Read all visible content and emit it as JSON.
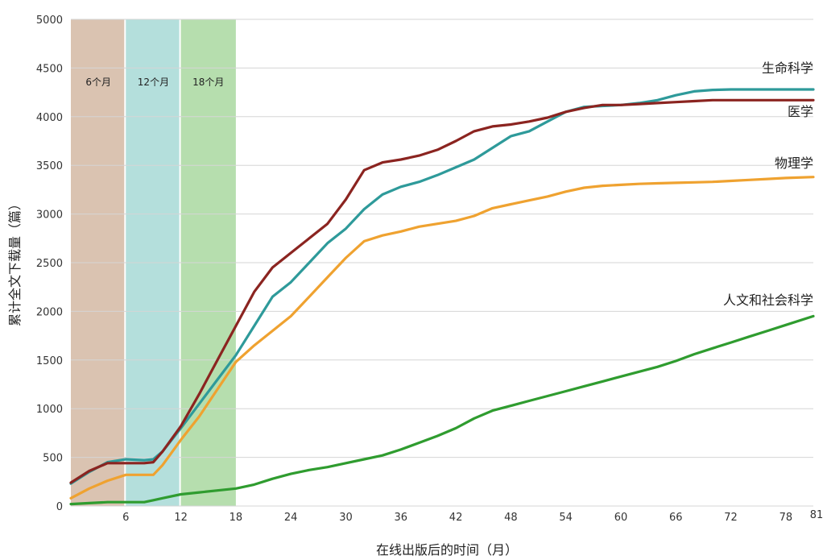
{
  "chart_data": {
    "type": "line",
    "xlabel": "在线出版后的时间（月）",
    "ylabel": "累计全文下载量（篇）",
    "xlim": [
      0,
      81
    ],
    "ylim": [
      0,
      5000
    ],
    "x_ticks": [
      6,
      12,
      18,
      24,
      30,
      36,
      42,
      48,
      54,
      60,
      66,
      72,
      78,
      81
    ],
    "y_ticks": [
      0,
      500,
      1000,
      1500,
      2000,
      2500,
      3000,
      3500,
      4000,
      4500,
      5000
    ],
    "grid": "horizontal",
    "bands": [
      {
        "label": "6个月",
        "x0": 0,
        "x1": 6,
        "color": "#d4b9a3"
      },
      {
        "label": "12个月",
        "x0": 6,
        "x1": 12,
        "color": "#a7d9d6"
      },
      {
        "label": "18个月",
        "x0": 12,
        "x1": 18,
        "color": "#a9d8a0"
      }
    ],
    "series": [
      {
        "name": "生命科学",
        "color": "#2e9a9a",
        "x": [
          0,
          2,
          4,
          6,
          8,
          9,
          10,
          12,
          14,
          16,
          18,
          20,
          22,
          24,
          26,
          28,
          30,
          32,
          34,
          36,
          38,
          40,
          42,
          44,
          46,
          48,
          50,
          52,
          54,
          56,
          58,
          60,
          62,
          64,
          66,
          68,
          70,
          72,
          74,
          76,
          78,
          81
        ],
        "y": [
          230,
          350,
          450,
          480,
          470,
          480,
          560,
          800,
          1050,
          1300,
          1550,
          1850,
          2150,
          2300,
          2500,
          2700,
          2850,
          3050,
          3200,
          3280,
          3330,
          3400,
          3480,
          3560,
          3680,
          3800,
          3850,
          3950,
          4050,
          4100,
          4110,
          4120,
          4140,
          4170,
          4220,
          4260,
          4275,
          4280,
          4280,
          4280,
          4280,
          4280
        ]
      },
      {
        "name": "医学",
        "color": "#8b2420",
        "x": [
          0,
          2,
          4,
          6,
          8,
          9,
          10,
          12,
          14,
          16,
          18,
          20,
          22,
          24,
          26,
          28,
          30,
          32,
          34,
          36,
          38,
          40,
          42,
          44,
          46,
          48,
          50,
          52,
          54,
          56,
          58,
          60,
          62,
          64,
          66,
          68,
          70,
          72,
          74,
          76,
          78,
          81
        ],
        "y": [
          240,
          360,
          440,
          440,
          440,
          450,
          560,
          820,
          1150,
          1500,
          1850,
          2200,
          2450,
          2600,
          2750,
          2900,
          3150,
          3450,
          3530,
          3560,
          3600,
          3660,
          3750,
          3850,
          3900,
          3920,
          3950,
          3990,
          4050,
          4090,
          4120,
          4120,
          4130,
          4140,
          4150,
          4160,
          4170,
          4170,
          4170,
          4170,
          4170,
          4170
        ]
      },
      {
        "name": "物理学",
        "color": "#efa230",
        "x": [
          0,
          2,
          4,
          6,
          8,
          9,
          10,
          12,
          14,
          16,
          18,
          20,
          22,
          24,
          26,
          28,
          30,
          32,
          34,
          36,
          38,
          40,
          42,
          44,
          46,
          48,
          50,
          52,
          54,
          56,
          58,
          60,
          62,
          64,
          66,
          68,
          70,
          72,
          74,
          76,
          78,
          81
        ],
        "y": [
          80,
          180,
          260,
          320,
          320,
          320,
          420,
          680,
          920,
          1200,
          1480,
          1650,
          1800,
          1950,
          2150,
          2350,
          2550,
          2720,
          2780,
          2820,
          2870,
          2900,
          2930,
          2980,
          3060,
          3100,
          3140,
          3180,
          3230,
          3270,
          3290,
          3300,
          3310,
          3315,
          3320,
          3325,
          3330,
          3340,
          3350,
          3360,
          3370,
          3380
        ]
      },
      {
        "name": "人文和社会科学",
        "color": "#2f9c2f",
        "x": [
          0,
          2,
          4,
          6,
          8,
          9,
          10,
          12,
          14,
          16,
          18,
          20,
          22,
          24,
          26,
          28,
          30,
          32,
          34,
          36,
          38,
          40,
          42,
          44,
          46,
          48,
          50,
          52,
          54,
          56,
          58,
          60,
          62,
          64,
          66,
          68,
          70,
          72,
          74,
          76,
          78,
          81
        ],
        "y": [
          20,
          30,
          40,
          40,
          40,
          60,
          80,
          120,
          140,
          160,
          180,
          220,
          280,
          330,
          370,
          400,
          440,
          480,
          520,
          580,
          650,
          720,
          800,
          900,
          980,
          1030,
          1080,
          1130,
          1180,
          1230,
          1280,
          1330,
          1380,
          1430,
          1490,
          1560,
          1620,
          1680,
          1740,
          1800,
          1860,
          1950
        ]
      }
    ]
  }
}
